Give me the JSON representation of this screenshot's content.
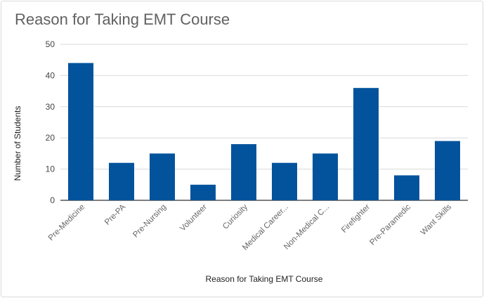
{
  "chart_data": {
    "type": "bar",
    "title": "Reason for Taking EMT Course",
    "xlabel": "Reason for Taking EMT Course",
    "ylabel": "Number of Students",
    "categories": [
      "Pre-Medicine",
      "Pre-PA",
      "Pre-Nursing",
      "Volunteer",
      "Curiosity",
      "Medical Career...",
      "Non-Medical C...",
      "Firefighter",
      "Pre-Paramedic",
      "Want Skills"
    ],
    "values": [
      44,
      12,
      15,
      5,
      18,
      12,
      15,
      36,
      8,
      19
    ],
    "yticks": [
      "0",
      "10",
      "20",
      "30",
      "40",
      "50"
    ],
    "ylim": [
      0,
      50
    ],
    "bar_color": "#03539c",
    "grid": true,
    "legend": "none"
  }
}
